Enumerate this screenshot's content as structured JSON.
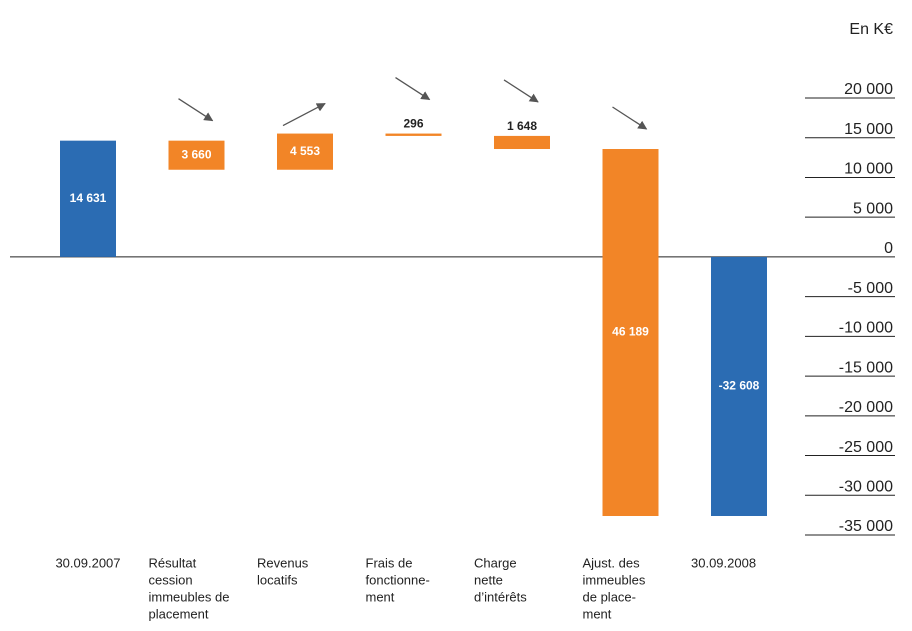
{
  "chart_data": {
    "type": "waterfall",
    "unit_label": "En K€",
    "categories": [
      [
        "30.09.2007"
      ],
      [
        "Résultat",
        "cession",
        "immeubles de",
        "placement"
      ],
      [
        "Revenus",
        "locatifs"
      ],
      [
        "Frais de",
        "fonctionne-",
        "ment"
      ],
      [
        "Charge",
        "nette",
        "d’intérêts"
      ],
      [
        "Ajust. des",
        "immeubles",
        "de place-",
        "ment"
      ],
      [
        "30.09.2008"
      ]
    ],
    "values": [
      14631,
      -3660,
      4553,
      -296,
      -1648,
      -46189,
      -32608
    ],
    "value_labels": [
      "14 631",
      "3 660",
      "4 553",
      "296",
      "1 648",
      "46 189",
      "-32 608"
    ],
    "is_total": [
      true,
      false,
      false,
      false,
      false,
      false,
      true
    ],
    "total_color": "#2b6cb3",
    "delta_color": "#f28527",
    "ylim": [
      -35000,
      20000
    ],
    "yticks": [
      {
        "value": 20000,
        "label": "20 000"
      },
      {
        "value": 15000,
        "label": "15 000"
      },
      {
        "value": 10000,
        "label": "10 000"
      },
      {
        "value": 5000,
        "label": "5 000"
      },
      0,
      {
        "value": -5000,
        "label": "-5 000"
      },
      {
        "value": -10000,
        "label": "-10 000"
      },
      {
        "value": -15000,
        "label": "-15 000"
      },
      {
        "value": -20000,
        "label": "-20 000"
      },
      {
        "value": -25000,
        "label": "-25 000"
      },
      {
        "value": -30000,
        "label": "-30 000"
      },
      {
        "value": -35000,
        "label": "-35 000"
      }
    ]
  }
}
